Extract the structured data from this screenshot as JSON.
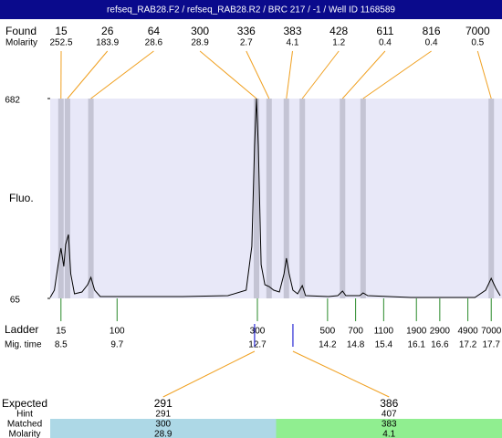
{
  "title": "refseq_RAB28.F2 / refseq_RAB28.R2 / BRC 217 / -1 / Well ID 1168589",
  "chart_data": {
    "type": "electropherogram",
    "y_label": "Fluo.",
    "ylim": [
      65,
      682
    ],
    "yticks": [
      65,
      682
    ],
    "xlim": [
      8.27,
      17.93
    ],
    "color": "#000000",
    "x": [
      8.27,
      8.36,
      8.44,
      8.5,
      8.56,
      8.6,
      8.66,
      8.71,
      8.79,
      8.95,
      9.07,
      9.14,
      9.22,
      9.34,
      10.12,
      11.1,
      12.07,
      12.46,
      12.58,
      12.64,
      12.68,
      12.72,
      12.78,
      12.86,
      12.95,
      13.05,
      13.17,
      13.27,
      13.32,
      13.38,
      13.46,
      13.56,
      13.66,
      13.73,
      14.22,
      14.42,
      14.52,
      14.59,
      14.89,
      14.96,
      15.06,
      15.98,
      17.35,
      17.58,
      17.7,
      17.8,
      17.89
    ],
    "values": [
      67.8,
      90.4,
      169.2,
      220,
      163.6,
      231.2,
      262.2,
      141,
      79,
      84.7,
      107.3,
      129.8,
      90.4,
      70.6,
      70.6,
      70.6,
      73.5,
      90.4,
      225.6,
      535.4,
      682,
      535.4,
      169.2,
      107.3,
      101.6,
      90.4,
      84.7,
      141,
      189,
      141,
      90.4,
      79,
      104.4,
      73.5,
      70.6,
      73.5,
      87.5,
      73.5,
      73.5,
      81.9,
      73.5,
      67.8,
      67.8,
      90.4,
      127,
      96,
      73.5
    ]
  },
  "found": {
    "label": "Found",
    "molarity_label": "Molarity",
    "peaks": [
      {
        "size": 15,
        "molarity": 252.5,
        "x": 8.5
      },
      {
        "size": 26,
        "molarity": 183.9,
        "x": 8.64
      },
      {
        "size": 64,
        "molarity": 28.6,
        "x": 9.14
      },
      {
        "size": 300,
        "molarity": 28.9,
        "x": 12.68
      },
      {
        "size": 336,
        "molarity": 2.7,
        "x": 12.95
      },
      {
        "size": 383,
        "molarity": 4.1,
        "x": 13.32
      },
      {
        "size": 428,
        "molarity": 1.2,
        "x": 13.66
      },
      {
        "size": 611,
        "molarity": 0.4,
        "x": 14.52
      },
      {
        "size": 816,
        "molarity": 0.4,
        "x": 14.96
      },
      {
        "size": 7000,
        "molarity": 0.5,
        "x": 17.7
      }
    ]
  },
  "ladder": {
    "label": "Ladder",
    "time_label": "Mig. time",
    "sizes": [
      15,
      100,
      300,
      500,
      700,
      1100,
      1900,
      2900,
      4900,
      7000
    ],
    "times": [
      8.5,
      9.7,
      12.7,
      14.2,
      14.8,
      15.4,
      16.1,
      16.6,
      17.2,
      17.7
    ]
  },
  "expected": {
    "label": "Expected",
    "hint_label": "Hint",
    "matched_label": "Matched",
    "molarity_label": "Molarity",
    "items": [
      {
        "expected": 291,
        "hint": 291,
        "matched": 300,
        "molarity": 28.9,
        "x": 12.64,
        "color": "#add8e6"
      },
      {
        "expected": 386,
        "hint": 407,
        "matched": 383,
        "molarity": 4.1,
        "x": 13.46,
        "color": "#90ee90"
      }
    ]
  }
}
